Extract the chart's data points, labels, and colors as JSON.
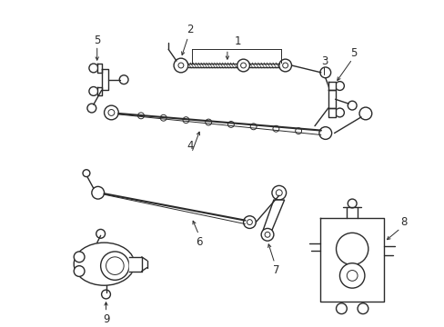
{
  "background_color": "#ffffff",
  "line_color": "#2a2a2a",
  "figsize": [
    4.89,
    3.6
  ],
  "dpi": 100
}
